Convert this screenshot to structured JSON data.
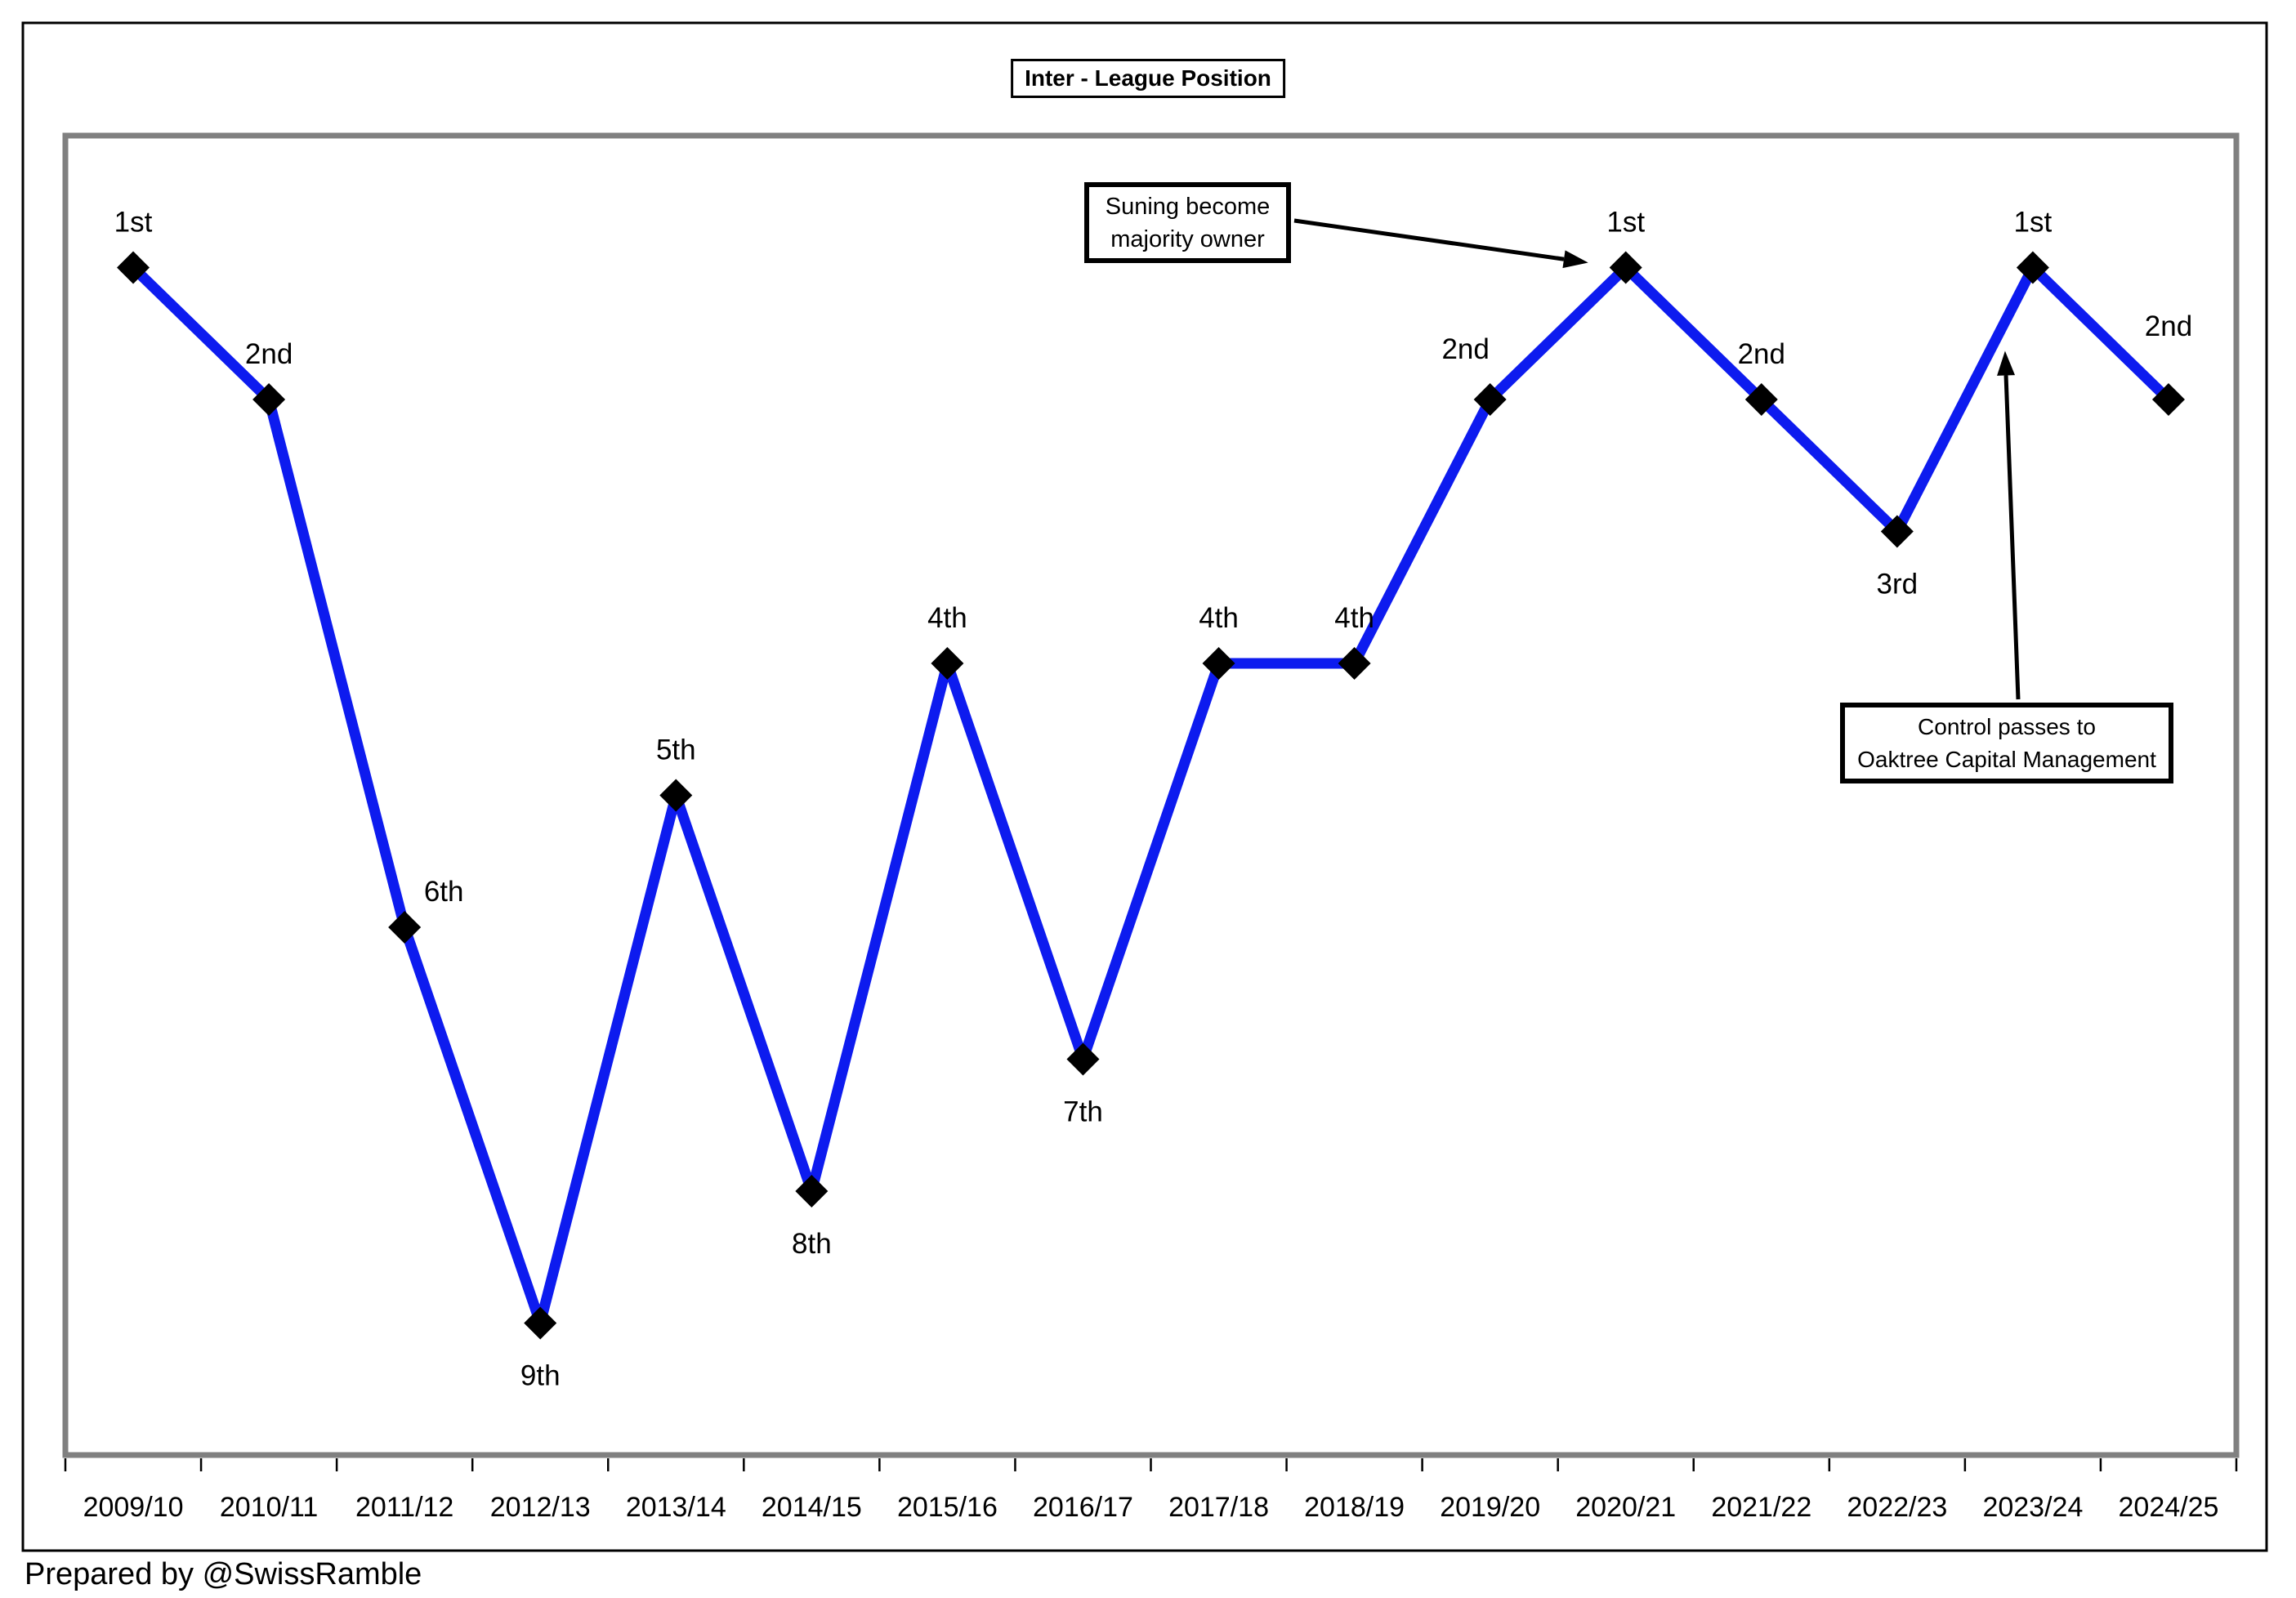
{
  "title": "Inter - League Position",
  "footer": "Prepared by @SwissRamble",
  "colors": {
    "line": "#0d1bef",
    "marker": "#000000",
    "plot_border": "#808080",
    "outer_frame": "#000000",
    "text": "#000000",
    "background": "#ffffff"
  },
  "chart_data": {
    "type": "line",
    "title": "Inter - League Position",
    "x": [
      "2009/10",
      "2010/11",
      "2011/12",
      "2012/13",
      "2013/14",
      "2014/15",
      "2015/16",
      "2016/17",
      "2017/18",
      "2018/19",
      "2019/20",
      "2020/21",
      "2021/22",
      "2022/23",
      "2023/24",
      "2024/25"
    ],
    "series": [
      {
        "name": "League position",
        "values": [
          1,
          2,
          6,
          9,
          5,
          8,
          4,
          7,
          4,
          4,
          2,
          1,
          2,
          3,
          1,
          2
        ]
      }
    ],
    "point_labels": [
      "1st",
      "2nd",
      "6th",
      "9th",
      "5th",
      "8th",
      "4th",
      "7th",
      "4th",
      "4th",
      "2nd",
      "1st",
      "2nd",
      "3rd",
      "1st",
      "2nd"
    ],
    "label_side": [
      "above",
      "above",
      "above-right",
      "below",
      "above",
      "below",
      "above",
      "below",
      "above",
      "above",
      "above-left",
      "above",
      "above",
      "below",
      "above",
      "above-far"
    ],
    "y_axis": {
      "visible": false,
      "reversed": true,
      "min": 0,
      "max": 10
    },
    "x_axis": {
      "tick_marks": "between-categories"
    },
    "grid": false,
    "legend": "none",
    "marker_shape": "diamond",
    "annotations": [
      {
        "text_lines": [
          "Suning become",
          "majority owner"
        ],
        "target_season": "2020/21"
      },
      {
        "text_lines": [
          "Control passes to",
          "Oaktree Capital Management"
        ],
        "target_season": "2023/24"
      }
    ]
  }
}
